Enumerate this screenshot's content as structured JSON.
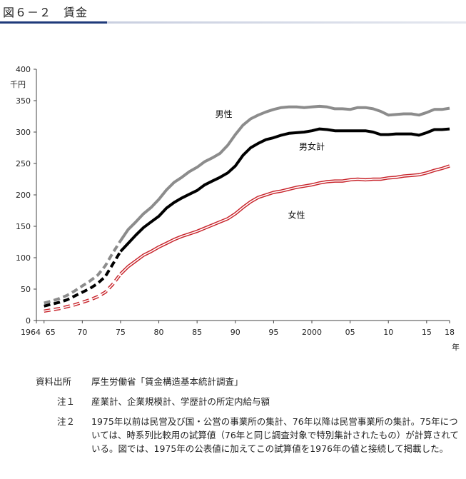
{
  "header": {
    "title": "図６－２　賃金"
  },
  "notes": [
    {
      "key": "資料出所",
      "text": "厚生労働省「賃金構造基本統計調査」"
    },
    {
      "key": "注１",
      "text": "産業計、企業規模計、学歴計の所定内給与額"
    },
    {
      "key": "注２",
      "text": "1975年以前は民営及び国・公営の事業所の集計、76年以降は民営事業所の集計。75年については、時系列比較用の試算値（76年と同じ調査対象で特別集計されたもの）が計算されている。図では、1975年の公表値に加えてこの試算値を1976年の値と接続して掲載した。"
    }
  ],
  "chart_data": {
    "type": "line",
    "ylabel": "千円",
    "xlabel": "年",
    "ylim": [
      0,
      400
    ],
    "xlim": [
      1964,
      2018
    ],
    "yticks": [
      0,
      50,
      100,
      150,
      200,
      250,
      300,
      350,
      400
    ],
    "xticks": [
      {
        "value": 1964,
        "label": "1964"
      },
      {
        "value": 1965,
        "label": "65"
      },
      {
        "value": 1970,
        "label": "70"
      },
      {
        "value": 1975,
        "label": "75"
      },
      {
        "value": 1980,
        "label": "80"
      },
      {
        "value": 1985,
        "label": "85"
      },
      {
        "value": 1990,
        "label": "90"
      },
      {
        "value": 1995,
        "label": "95"
      },
      {
        "value": 2000,
        "label": "2000"
      },
      {
        "value": 2005,
        "label": "05"
      },
      {
        "value": 2010,
        "label": "10"
      },
      {
        "value": 2015,
        "label": "15"
      },
      {
        "value": 2018,
        "label": "18"
      }
    ],
    "grid": false,
    "dashed_until": 1975,
    "x": [
      1965,
      1966,
      1967,
      1968,
      1969,
      1970,
      1971,
      1972,
      1973,
      1974,
      1975,
      1976,
      1977,
      1978,
      1979,
      1980,
      1981,
      1982,
      1983,
      1984,
      1985,
      1986,
      1987,
      1988,
      1989,
      1990,
      1991,
      1992,
      1993,
      1994,
      1995,
      1996,
      1997,
      1998,
      1999,
      2000,
      2001,
      2002,
      2003,
      2004,
      2005,
      2006,
      2007,
      2008,
      2009,
      2010,
      2011,
      2012,
      2013,
      2014,
      2015,
      2016,
      2017,
      2018
    ],
    "series": [
      {
        "name": "男性",
        "color": "#8c8c8c",
        "values": [
          28,
          31,
          35,
          40,
          47,
          55,
          63,
          72,
          87,
          108,
          127,
          145,
          157,
          170,
          180,
          193,
          208,
          220,
          228,
          237,
          244,
          253,
          259,
          266,
          279,
          296,
          311,
          321,
          327,
          332,
          336,
          339,
          340,
          340,
          339,
          340,
          341,
          340,
          337,
          337,
          336,
          339,
          339,
          337,
          333,
          327,
          328,
          329,
          329,
          327,
          331,
          336,
          336,
          338
        ]
      },
      {
        "name": "男女計",
        "color": "#000000",
        "values": [
          23,
          26,
          29,
          33,
          39,
          45,
          51,
          59,
          70,
          90,
          110,
          123,
          136,
          148,
          157,
          166,
          179,
          188,
          195,
          201,
          207,
          216,
          222,
          228,
          235,
          246,
          263,
          275,
          282,
          288,
          291,
          295,
          298,
          299,
          300,
          302,
          305,
          304,
          302,
          302,
          302,
          302,
          302,
          300,
          296,
          296,
          297,
          297,
          297,
          295,
          299,
          304,
          304,
          305
        ]
      },
      {
        "name": "女性",
        "color": "#c8242b",
        "style": "double",
        "values": [
          15,
          17,
          19,
          22,
          25,
          29,
          33,
          38,
          45,
          58,
          74,
          86,
          95,
          104,
          110,
          117,
          123,
          129,
          134,
          138,
          142,
          147,
          152,
          157,
          162,
          170,
          180,
          189,
          196,
          200,
          204,
          206,
          209,
          212,
          214,
          216,
          219,
          221,
          222,
          222,
          224,
          225,
          224,
          225,
          225,
          227,
          228,
          230,
          231,
          232,
          235,
          239,
          242,
          246
        ]
      }
    ],
    "annotations": [
      "男性",
      "男女計",
      "女性"
    ]
  }
}
